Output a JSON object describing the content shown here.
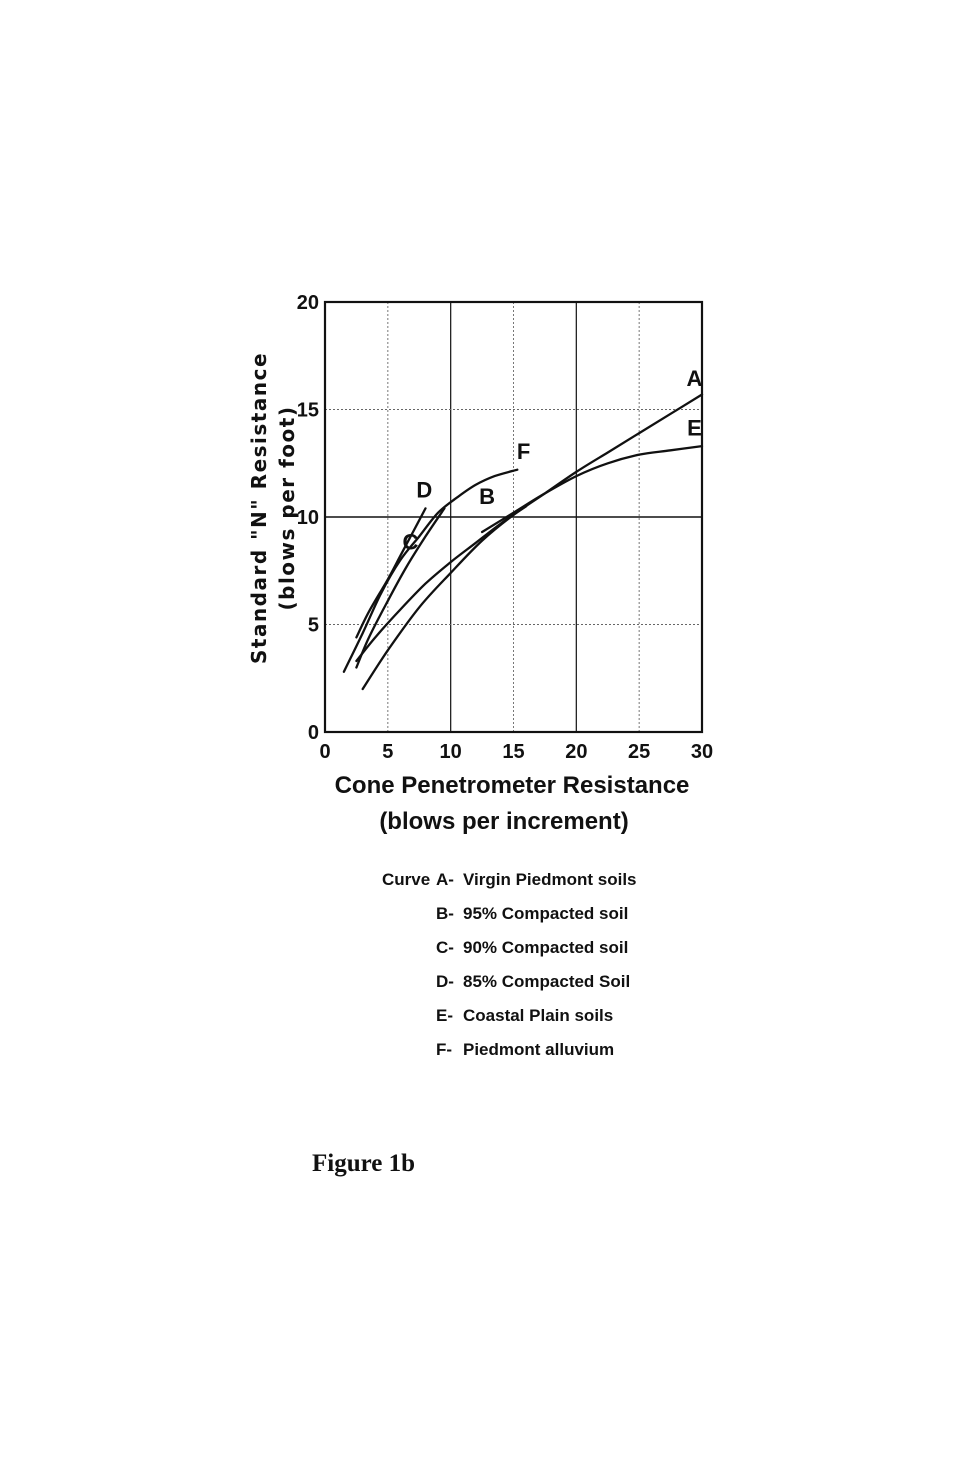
{
  "chart_data": {
    "type": "line",
    "xlabel": [
      "Cone Penetrometer Resistance",
      "(blows per increment)"
    ],
    "ylabel": [
      "Standard \"N\" Resistance",
      "(blows per foot)"
    ],
    "xlim": [
      0,
      30
    ],
    "ylim": [
      0,
      20
    ],
    "xticks": [
      "0",
      "5",
      "10",
      "15",
      "20",
      "25",
      "30"
    ],
    "yticks": [
      "0",
      "5",
      "10",
      "15",
      "20"
    ],
    "grid": true,
    "series": [
      {
        "name": "A",
        "x": [
          3,
          5,
          7.5,
          10,
          12.5,
          15,
          17.5,
          20,
          22.5,
          25,
          27.5,
          30
        ],
        "y": [
          2,
          3.8,
          5.8,
          7.4,
          8.9,
          10.1,
          11.1,
          12.1,
          13,
          13.9,
          14.8,
          15.7
        ]
      },
      {
        "name": "B",
        "x": [
          2.5,
          4,
          6,
          8,
          10,
          12,
          14,
          16
        ],
        "y": [
          3.3,
          4.4,
          5.7,
          6.9,
          7.9,
          8.8,
          9.7,
          10.5
        ]
      },
      {
        "name": "C",
        "x": [
          2.5,
          3.5,
          5,
          6.5,
          8,
          9.5
        ],
        "y": [
          3,
          4.4,
          6.1,
          7.7,
          9.1,
          10.4
        ]
      },
      {
        "name": "D",
        "x": [
          2.5,
          3.5,
          5,
          6,
          7,
          8
        ],
        "y": [
          4.4,
          5.6,
          7.1,
          8.2,
          9.3,
          10.4
        ]
      },
      {
        "name": "E",
        "x": [
          12.5,
          15,
          17.5,
          20,
          22.5,
          25,
          27.5,
          30
        ],
        "y": [
          9.3,
          10.2,
          11.1,
          11.9,
          12.5,
          12.9,
          13.1,
          13.3
        ]
      },
      {
        "name": "F",
        "x": [
          1.5,
          3,
          4.5,
          6,
          7.5,
          9,
          10.5,
          12,
          13.5,
          15.3
        ],
        "y": [
          2.8,
          4.6,
          6.5,
          8,
          9.1,
          10.2,
          10.9,
          11.5,
          11.9,
          12.2
        ]
      }
    ],
    "legend": {
      "prefix": "Curve",
      "entries": [
        {
          "key": "A-",
          "text": "Virgin Piedmont soils"
        },
        {
          "key": "B-",
          "text": "95% Compacted soil"
        },
        {
          "key": "C-",
          "text": "90% Compacted soil"
        },
        {
          "key": "D-",
          "text": "85% Compacted Soil"
        },
        {
          "key": "E-",
          "text": "Coastal Plain soils"
        },
        {
          "key": "F-",
          "text": "Piedmont alluvium"
        }
      ]
    }
  },
  "caption": "Figure 1b"
}
